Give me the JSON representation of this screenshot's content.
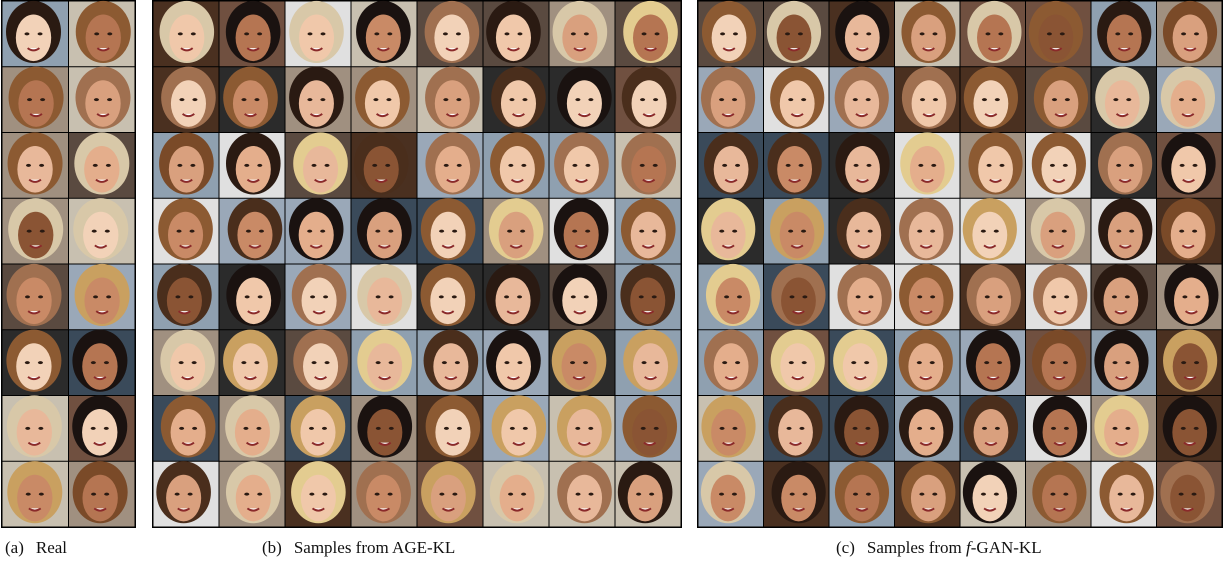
{
  "panels": [
    {
      "label": "(a)",
      "caption": "Real"
    },
    {
      "label": "(b)",
      "caption": "Samples from AGE-KL"
    },
    {
      "label": "(c)",
      "caption": "Samples from",
      "math": "f",
      "suffix": "-GAN-KL"
    }
  ]
}
